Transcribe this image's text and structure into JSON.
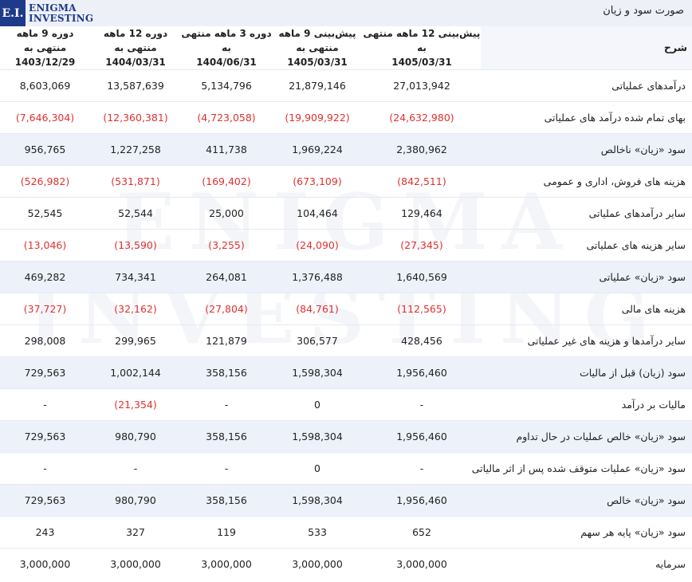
{
  "brand": {
    "logo_mark": "E.I.",
    "logo_line1": "ENIGMA",
    "logo_line2": "INVESTING",
    "watermark_line1": "ENIGMA",
    "watermark_line2": "INVESTING"
  },
  "page_title": "صورت سود و زیان",
  "columns": [
    {
      "line1": "دوره 9 ماهه منتهی به",
      "line2": "1403/12/29"
    },
    {
      "line1": "دوره 12 ماهه منتهی به",
      "line2": "1404/03/31"
    },
    {
      "line1": "دوره 3 ماهه منتهی به",
      "line2": "1404/06/31"
    },
    {
      "line1": "پیش‌بینی 9 ماهه منتهی به",
      "line2": "1405/03/31"
    },
    {
      "line1": "پیش‌بینی 12 ماهه منتهی به",
      "line2": "1405/03/31"
    }
  ],
  "label_header": "شرح",
  "rows": [
    {
      "label": "درآمدهای عملیاتی",
      "values": [
        "8,603,069",
        "13,587,639",
        "5,134,796",
        "21,879,146",
        "27,013,942"
      ],
      "negative": false,
      "highlight": false
    },
    {
      "label": "بهای تمام شده درآمد های عملیاتی",
      "values": [
        "(7,646,304)",
        "(12,360,381)",
        "(4,723,058)",
        "(19,909,922)",
        "(24,632,980)"
      ],
      "negative": true,
      "highlight": false
    },
    {
      "label": "سود «زیان» ناخالص",
      "values": [
        "956,765",
        "1,227,258",
        "411,738",
        "1,969,224",
        "2,380,962"
      ],
      "negative": false,
      "highlight": true
    },
    {
      "label": "هزینه های فروش، اداری و عمومی",
      "values": [
        "(526,982)",
        "(531,871)",
        "(169,402)",
        "(673,109)",
        "(842,511)"
      ],
      "negative": true,
      "highlight": false
    },
    {
      "label": "سایر درآمدهای عملیاتی",
      "values": [
        "52,545",
        "52,544",
        "25,000",
        "104,464",
        "129,464"
      ],
      "negative": false,
      "highlight": false
    },
    {
      "label": "سایر هزینه های عملیاتی",
      "values": [
        "(13,046)",
        "(13,590)",
        "(3,255)",
        "(24,090)",
        "(27,345)"
      ],
      "negative": true,
      "highlight": false
    },
    {
      "label": "سود «زیان» عملیاتی",
      "values": [
        "469,282",
        "734,341",
        "264,081",
        "1,376,488",
        "1,640,569"
      ],
      "negative": false,
      "highlight": true
    },
    {
      "label": "هزینه های مالی",
      "values": [
        "(37,727)",
        "(32,162)",
        "(27,804)",
        "(84,761)",
        "(112,565)"
      ],
      "negative": true,
      "highlight": false
    },
    {
      "label": "سایر درآمدها و هزینه های غیر عملیاتی",
      "values": [
        "298,008",
        "299,965",
        "121,879",
        "306,577",
        "428,456"
      ],
      "negative": false,
      "highlight": false
    },
    {
      "label": "سود (زیان) قبل از مالیات",
      "values": [
        "729,563",
        "1,002,144",
        "358,156",
        "1,598,304",
        "1,956,460"
      ],
      "negative": false,
      "highlight": true
    },
    {
      "label": "مالیات بر درآمد",
      "values": [
        "-",
        "(21,354)",
        "-",
        "0",
        "-"
      ],
      "negative": false,
      "neg_cells": [
        false,
        true,
        false,
        false,
        false
      ],
      "highlight": false
    },
    {
      "label": "سود «زیان» خالص عملیات در حال تداوم",
      "values": [
        "729,563",
        "980,790",
        "358,156",
        "1,598,304",
        "1,956,460"
      ],
      "negative": false,
      "highlight": true
    },
    {
      "label": "سود «زیان» عملیات متوقف شده پس از اثر مالیاتی",
      "values": [
        "-",
        "-",
        "-",
        "0",
        "-"
      ],
      "negative": false,
      "highlight": false
    },
    {
      "label": "سود «زیان» خالص",
      "values": [
        "729,563",
        "980,790",
        "358,156",
        "1,598,304",
        "1,956,460"
      ],
      "negative": false,
      "highlight": true
    },
    {
      "label": "سود «زیان» پایه هر سهم",
      "values": [
        "243",
        "327",
        "119",
        "533",
        "652"
      ],
      "negative": false,
      "highlight": false
    },
    {
      "label": "سرمایه",
      "values": [
        "3,000,000",
        "3,000,000",
        "3,000,000",
        "3,000,000",
        "3,000,000"
      ],
      "negative": false,
      "highlight": false
    }
  ],
  "colors": {
    "negative": "#e03030",
    "highlight_row": "#edf1fa",
    "brand_blue": "#1e3a8a"
  }
}
